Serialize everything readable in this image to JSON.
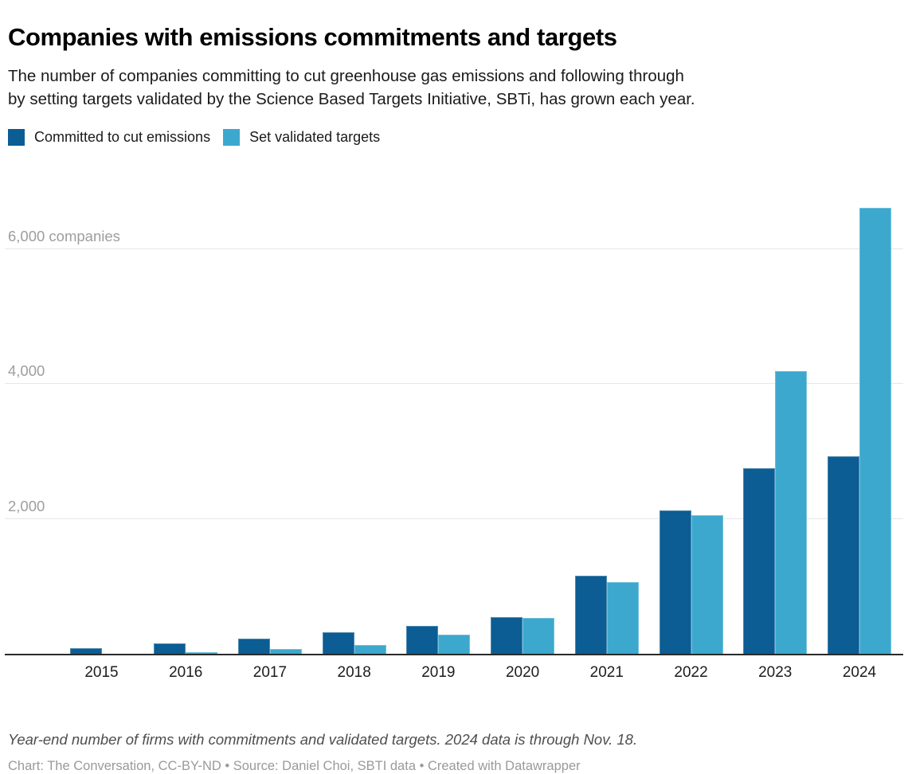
{
  "chart_data": {
    "type": "bar",
    "title": "Companies with emissions commitments and targets",
    "subtitle_lines": [
      "The number of companies committing to cut greenhouse gas emissions and following through",
      "by setting targets validated by the Science Based Targets Initiative, SBTi, has grown each year."
    ],
    "categories": [
      "2015",
      "2016",
      "2017",
      "2018",
      "2019",
      "2020",
      "2021",
      "2022",
      "2023",
      "2024"
    ],
    "series": [
      {
        "key": "committed",
        "name": "Committed to cut emissions",
        "color": "#0b5d93",
        "values": [
          95,
          165,
          235,
          330,
          420,
          550,
          1165,
          2130,
          2760,
          2935
        ]
      },
      {
        "key": "validated",
        "name": "Set validated targets",
        "color": "#3ca8ce",
        "values": [
          10,
          35,
          80,
          145,
          295,
          540,
          1070,
          2060,
          4190,
          6610
        ]
      }
    ],
    "xlabel": "",
    "ylabel": "companies",
    "yticks": [
      {
        "value": 2000,
        "label": "2,000"
      },
      {
        "value": 4000,
        "label": "4,000"
      },
      {
        "value": 6000,
        "label": "6,000 companies"
      }
    ],
    "ylim": [
      0,
      6860
    ],
    "grid": true,
    "legend_position": "top-left",
    "note": "Year-end number of firms with commitments and validated targets. 2024 data is through Nov. 18.",
    "credit": "Chart: The Conversation, CC-BY-ND • Source: Daniel Choi, SBTI data • Created with Datawrapper"
  },
  "colors": {
    "committed": "#0b5d93",
    "validated": "#3ca8ce",
    "gridline": "#e7e7e7",
    "axis_line": "#2a2a2a",
    "y_tick_text": "#9e9e9e",
    "x_tick_text": "#1d1d1d"
  }
}
